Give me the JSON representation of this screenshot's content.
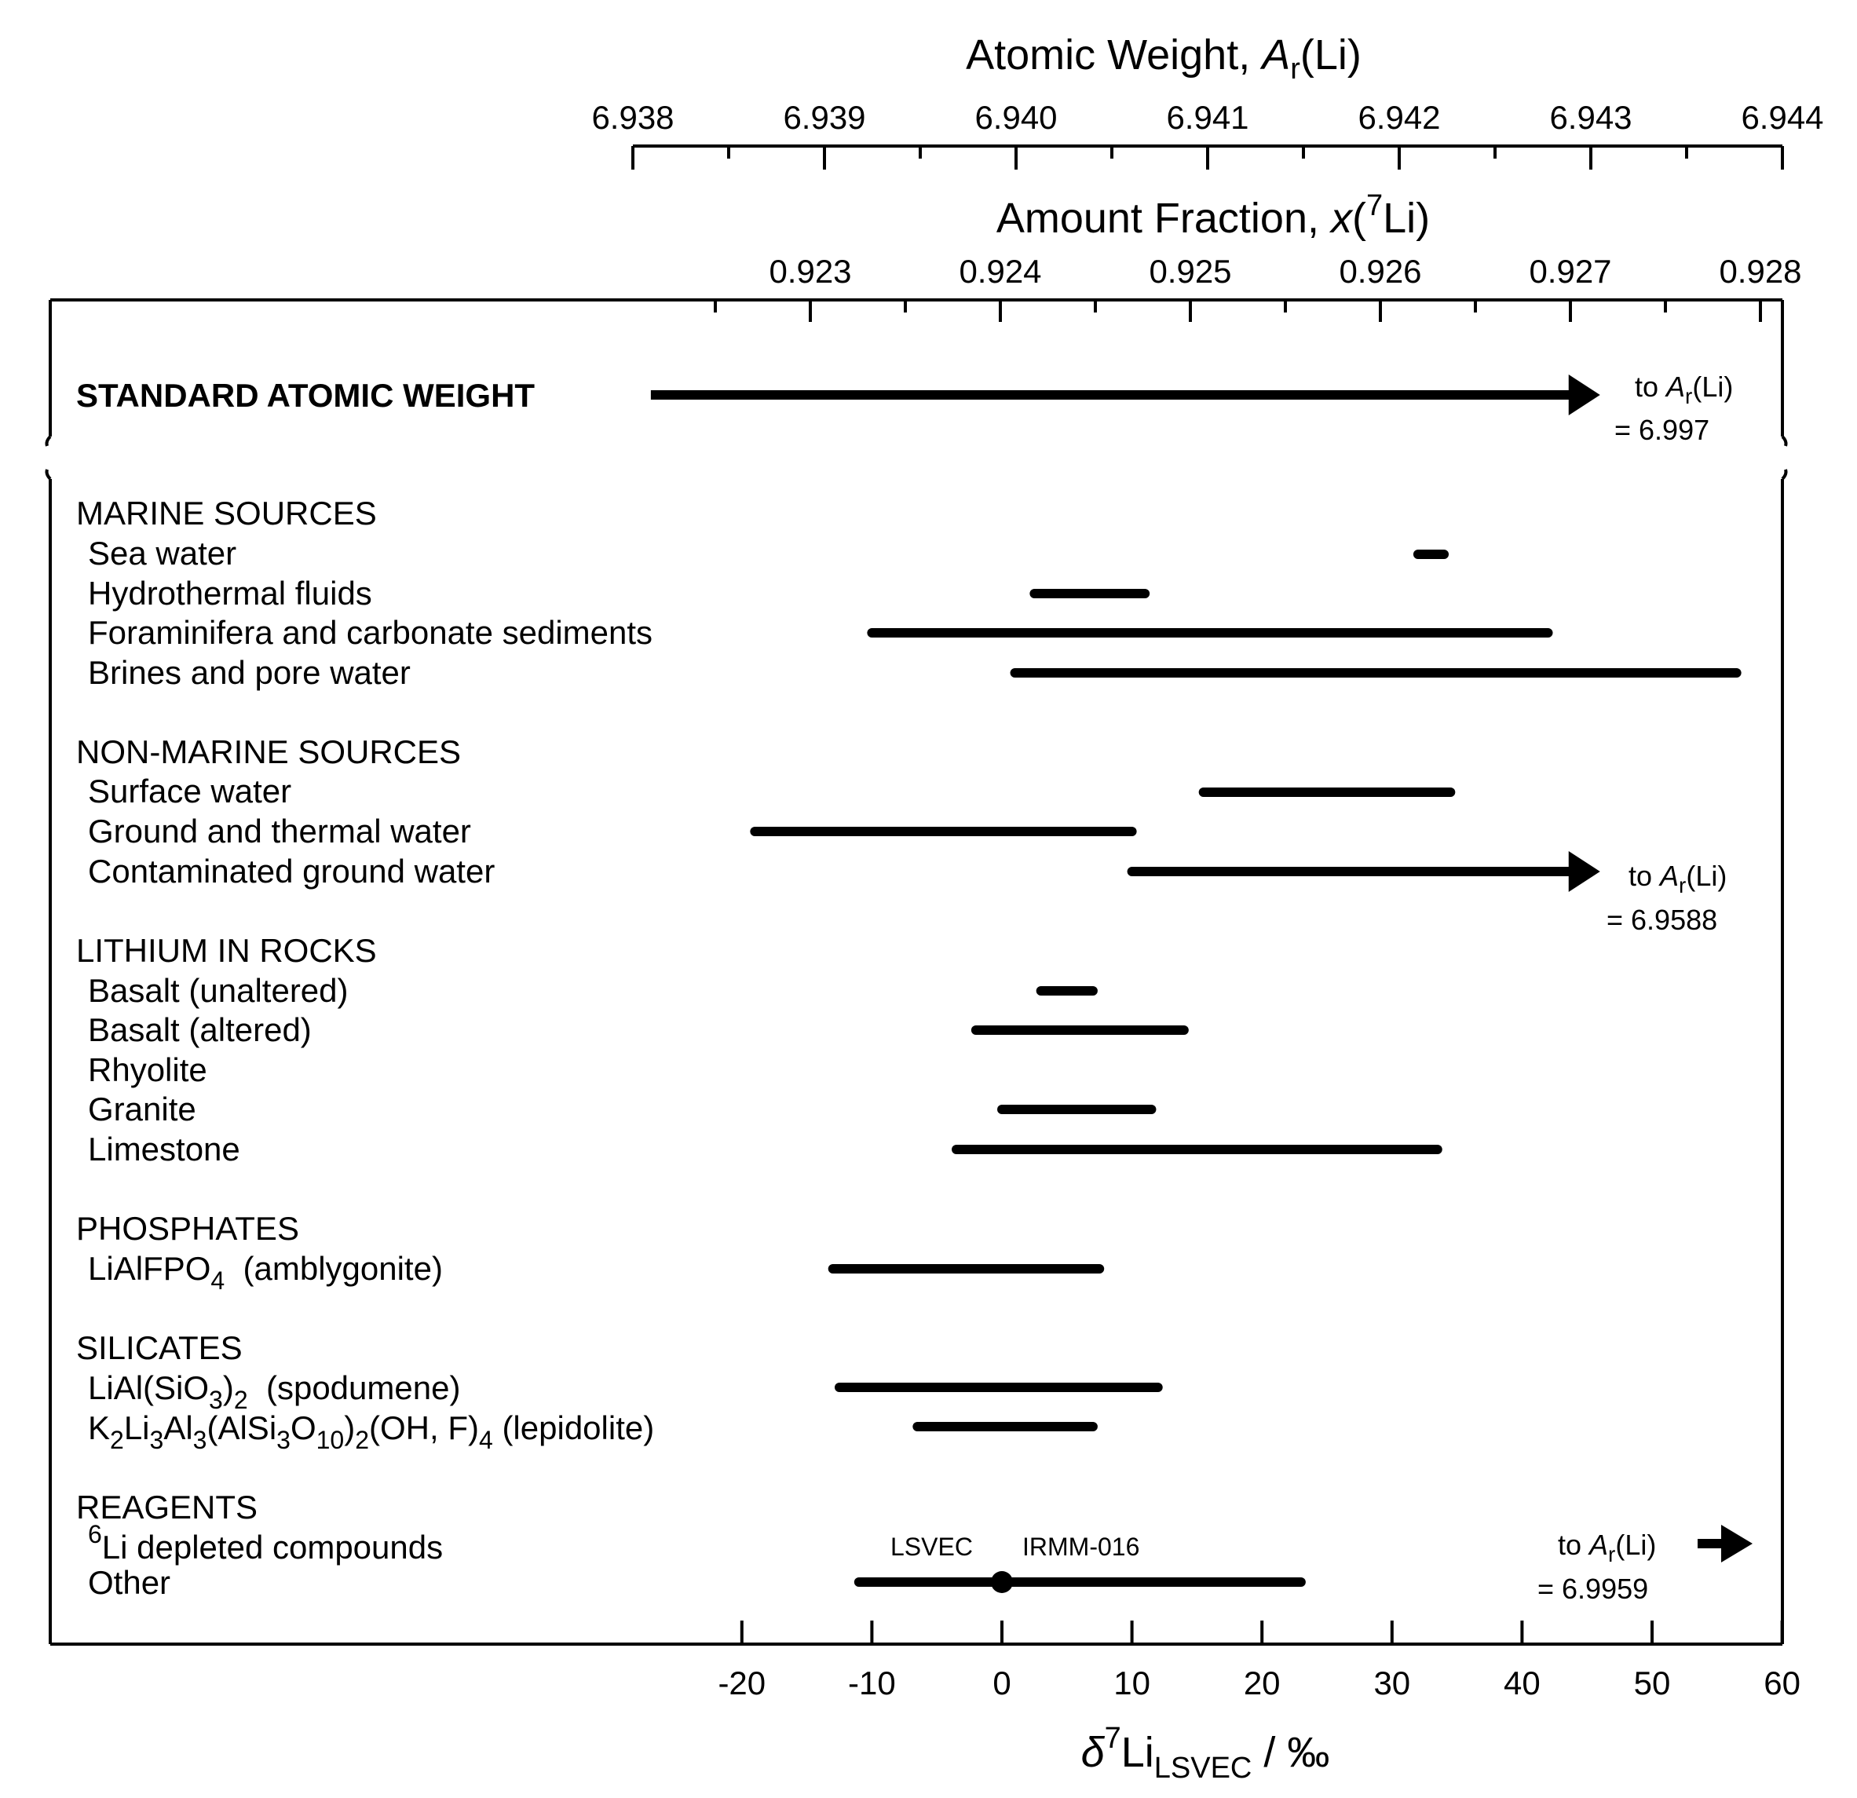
{
  "chart_data": {
    "type": "range",
    "top_axis_1": {
      "title_main": "Atomic Weight, ",
      "title_italic": "A",
      "title_sub": "r",
      "title_tail": "(Li)",
      "ticks": [
        6.938,
        6.939,
        6.94,
        6.941,
        6.942,
        6.943,
        6.944
      ],
      "tick_labels": [
        "6.938",
        "6.939",
        "6.940",
        "6.941",
        "6.942",
        "6.943",
        "6.944"
      ]
    },
    "top_axis_2": {
      "title_main": "Amount Fraction, ",
      "title_italic": "x",
      "title_open": "(",
      "title_sup": "7",
      "title_tail": "Li)",
      "ticks": [
        0.923,
        0.924,
        0.925,
        0.926,
        0.927,
        0.928
      ],
      "tick_labels": [
        "0.923",
        "0.924",
        "0.925",
        "0.926",
        "0.927",
        "0.928"
      ]
    },
    "x_axis": {
      "label_delta": "δ",
      "label_sup": "7",
      "label_li": "Li",
      "label_sub": "LSVEC",
      "label_unit": " / ‰",
      "range": [
        -27,
        60
      ],
      "ticks": [
        -20,
        -10,
        0,
        10,
        20,
        30,
        40,
        50,
        60
      ],
      "tick_labels": [
        "-20",
        "-10",
        "0",
        "10",
        "20",
        "30",
        "40",
        "50",
        "60"
      ]
    },
    "standard": {
      "label": "STANDARD ATOMIC WEIGHT",
      "start": -27,
      "end": 46,
      "note_line1_prefix": "to ",
      "note_italic": "A",
      "note_sub": "r",
      "note_tail": "(Li)",
      "note_line2": "= 6.997"
    },
    "groups": [
      {
        "title": "MARINE SOURCES",
        "items": [
          {
            "label": "Sea water",
            "min": 32,
            "max": 34
          },
          {
            "label": "Hydrothermal fluids",
            "min": 2.5,
            "max": 11
          },
          {
            "label": "Foraminifera and carbonate sediments",
            "min": -10,
            "max": 42
          },
          {
            "label": "Brines and pore water",
            "min": 1,
            "max": 56.5
          }
        ]
      },
      {
        "title": "NON-MARINE SOURCES",
        "items": [
          {
            "label": "Surface water",
            "min": 15.5,
            "max": 34.5
          },
          {
            "label": "Ground and thermal water",
            "min": -19,
            "max": 10
          },
          {
            "label": "Contaminated ground water",
            "min": 10,
            "max": 46,
            "arrow_note_prefix": "to ",
            "arrow_note_italic": "A",
            "arrow_note_sub": "r",
            "arrow_note_tail": "(Li)",
            "arrow_note_line2": "= 6.9588"
          }
        ]
      },
      {
        "title": "LITHIUM IN ROCKS",
        "items": [
          {
            "label": "Basalt (unaltered)",
            "min": 3,
            "max": 7
          },
          {
            "label": "Basalt (altered)",
            "min": -2,
            "max": 14
          },
          {
            "label": "Rhyolite",
            "min": null,
            "max": null
          },
          {
            "label": "Granite",
            "min": 0,
            "max": 11.5
          },
          {
            "label": "Limestone",
            "min": -3.5,
            "max": 33.5
          }
        ]
      },
      {
        "title": "PHOSPHATES",
        "items": [
          {
            "label_main": "LiAlFPO",
            "label_sub": "4",
            "label_tail": "  (amblygonite)",
            "min": -13,
            "max": 7.5
          }
        ]
      },
      {
        "title": "SILICATES",
        "items": [
          {
            "label_main": "LiAl(SiO",
            "label_sub": "3",
            "label_mid": ")",
            "label_sub2": "2",
            "label_tail": "  (spodumene)",
            "min": -12.5,
            "max": 12
          },
          {
            "label_formula": [
              "K",
              "2",
              "Li",
              "3",
              "Al",
              "3",
              "(AlSi",
              "3",
              "O",
              "10",
              ")",
              "2",
              "(OH, F)",
              "4",
              " (lepidolite)"
            ],
            "min": -6.5,
            "max": 7
          }
        ]
      },
      {
        "title": "REAGENTS",
        "items": [
          {
            "label_sup": "6",
            "label_tail": "Li depleted compounds",
            "min": null,
            "max": null,
            "note_prefix": "to ",
            "note_italic": "A",
            "note_sub": "r",
            "note_tail": "(Li)",
            "note_line2": "= 6.9959"
          },
          {
            "label": "Other",
            "min": -11,
            "max": 23
          }
        ]
      }
    ],
    "reference_point": {
      "value": 0,
      "label_left": "LSVEC",
      "label_right": "IRMM-016"
    }
  }
}
